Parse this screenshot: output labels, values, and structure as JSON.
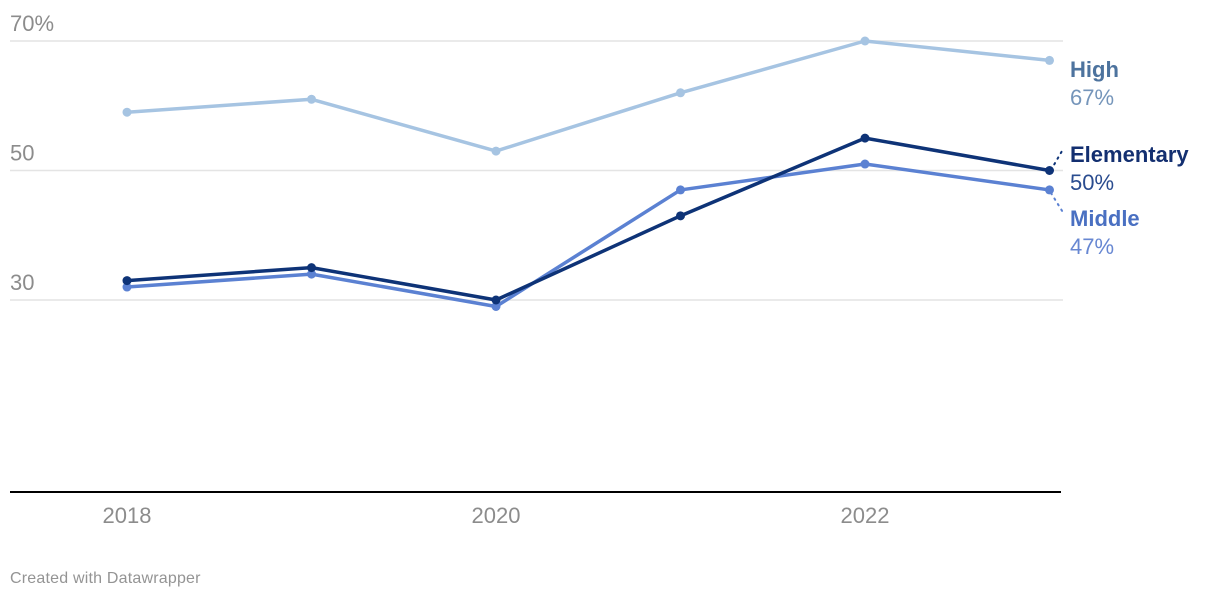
{
  "chart_data": {
    "type": "line",
    "title": "",
    "x": [
      2018,
      2019,
      2020,
      2021,
      2022,
      2023
    ],
    "x_ticks": [
      {
        "value": 2018,
        "label": "2018"
      },
      {
        "value": 2020,
        "label": "2020"
      },
      {
        "value": 2022,
        "label": "2022"
      }
    ],
    "y_gridlines": [
      {
        "value": 70,
        "label": "70%"
      },
      {
        "value": 50,
        "label": "50"
      },
      {
        "value": 30,
        "label": "30"
      }
    ],
    "ylim": [
      26,
      72
    ],
    "grid": true,
    "legend_position": "end-labels-right",
    "series": [
      {
        "name": "High",
        "values": [
          59,
          61,
          53,
          62,
          70,
          67
        ],
        "color": "#a6c4e2",
        "label_color": "#4d739e",
        "end_value_label": "67%",
        "value_color": "#7595ba"
      },
      {
        "name": "Elementary",
        "values": [
          33,
          35,
          30,
          43,
          55,
          50
        ],
        "color": "#0e3377",
        "label_color": "#132f70",
        "end_value_label": "50%",
        "value_color": "#2a4c8f"
      },
      {
        "name": "Middle",
        "values": [
          32,
          34,
          29,
          47,
          51,
          47
        ],
        "color": "#5b81d2",
        "label_color": "#4a70c2",
        "end_value_label": "47%",
        "value_color": "#6787d2"
      }
    ]
  },
  "footer": {
    "credit": "Created with Datawrapper"
  }
}
